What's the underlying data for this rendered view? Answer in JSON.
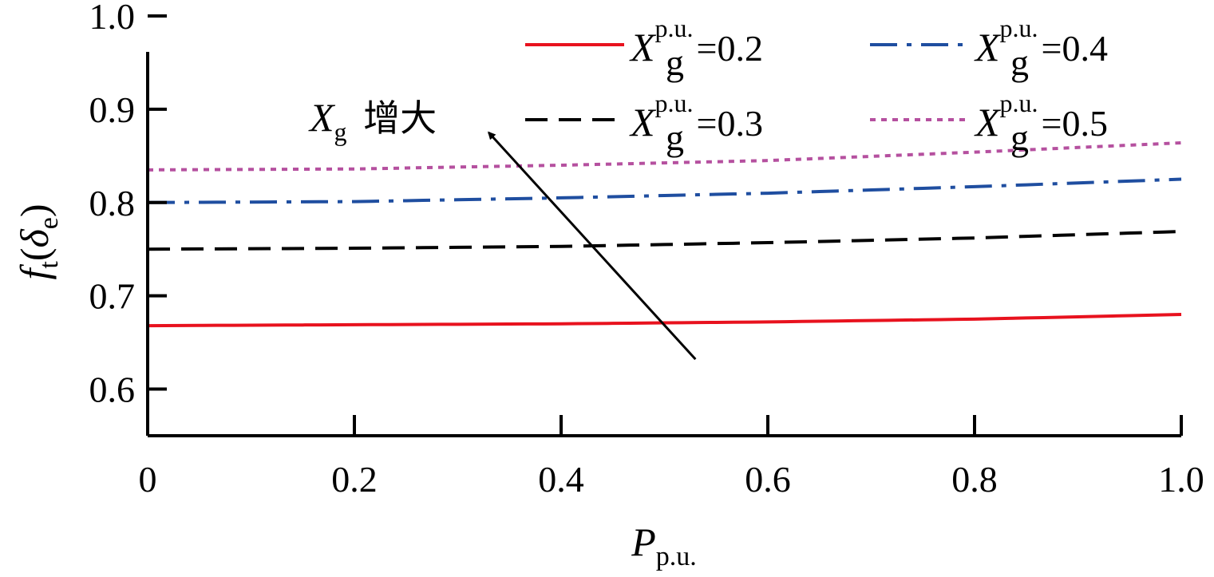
{
  "chart_data": {
    "type": "line",
    "x_axis": {
      "label_main": "P",
      "label_sub": "p.u.",
      "range": [
        0,
        1.0
      ],
      "ticks": [
        0,
        0.2,
        0.4,
        0.6,
        0.8,
        1.0
      ],
      "tick_labels": [
        "0",
        "0.2",
        "0.4",
        "0.6",
        "0.8",
        "1.0"
      ]
    },
    "y_axis": {
      "label_f": "f",
      "label_f_sub": "t",
      "label_open": "(",
      "label_delta": "δ",
      "label_delta_sub": "e",
      "label_close": ")",
      "range": [
        0.55,
        1.0
      ],
      "ticks": [
        0.6,
        0.7,
        0.8,
        0.9,
        1.0
      ],
      "tick_labels": [
        "0.6",
        "0.7",
        "0.8",
        "0.9",
        "1.0"
      ]
    },
    "legend_placement": "top-right",
    "grid": false,
    "series": [
      {
        "key": "x02",
        "legend": {
          "var": "X",
          "sup": "p.u.",
          "sub": "g",
          "eq": "=0.2"
        },
        "color": "#e8121e",
        "dash": "none",
        "x": [
          0,
          0.2,
          0.4,
          0.6,
          0.8,
          1.0
        ],
        "y": [
          0.668,
          0.669,
          0.67,
          0.672,
          0.675,
          0.68
        ]
      },
      {
        "key": "x03",
        "legend": {
          "var": "X",
          "sup": "p.u.",
          "sub": "g",
          "eq": "=0.3"
        },
        "color": "#000000",
        "dash": "dashed",
        "x": [
          0,
          0.2,
          0.4,
          0.6,
          0.8,
          1.0
        ],
        "y": [
          0.75,
          0.751,
          0.753,
          0.757,
          0.762,
          0.769
        ]
      },
      {
        "key": "x04",
        "legend": {
          "var": "X",
          "sup": "p.u.",
          "sub": "g",
          "eq": "=0.4"
        },
        "color": "#1f4ea0",
        "dash": "dashdot",
        "x": [
          0,
          0.2,
          0.4,
          0.6,
          0.8,
          1.0
        ],
        "y": [
          0.8,
          0.801,
          0.805,
          0.81,
          0.817,
          0.825
        ]
      },
      {
        "key": "x05",
        "legend": {
          "var": "X",
          "sup": "p.u.",
          "sub": "g",
          "eq": "=0.5"
        },
        "color": "#b5509f",
        "dash": "dotted",
        "x": [
          0,
          0.2,
          0.4,
          0.6,
          0.8,
          1.0
        ],
        "y": [
          0.835,
          0.836,
          0.84,
          0.845,
          0.854,
          0.864
        ]
      }
    ],
    "annotation": {
      "var": "X",
      "sub": "g",
      "text": "增大",
      "arrow_from": {
        "x": 0.53,
        "y": 0.632
      },
      "arrow_to": {
        "x": 0.33,
        "y": 0.875
      }
    }
  }
}
